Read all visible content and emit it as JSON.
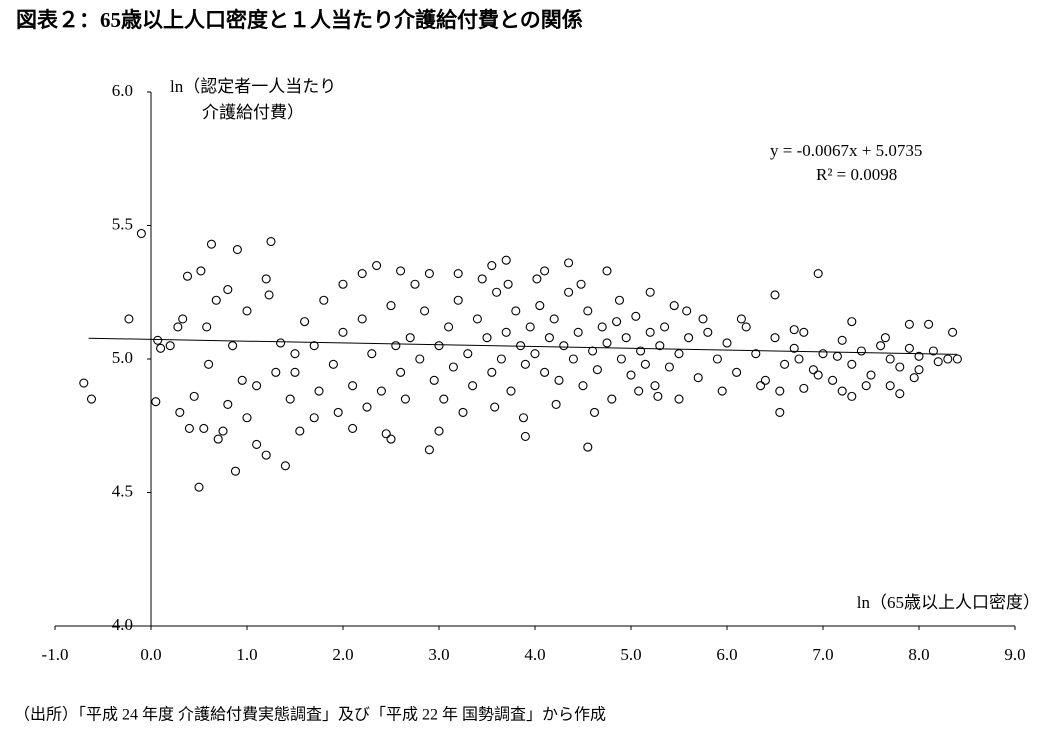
{
  "chart_data": {
    "type": "scatter",
    "title": "図表２：65歳以上人口密度と１人当たり介護給付費との関係",
    "x_label": "ln（65歳以上人口密度）",
    "y_label": [
      "ln（認定者一人当たり",
      "介護給付費）"
    ],
    "source": "（出所）「平成 24 年度 介護給付費実態調査」及び「平成 22 年 国勢調査」から作成",
    "equation": "y = -0.0067x + 5.0735",
    "r_squared": "R² = 0.0098",
    "trendline": {
      "slope": -0.0067,
      "intercept": 5.0735,
      "xlim": [
        -0.65,
        8.4
      ]
    },
    "color": "#000000",
    "xlim": [
      -1,
      9
    ],
    "ylim": [
      4,
      6
    ],
    "xticks": [
      {
        "value": -1,
        "label": "-1.0"
      },
      {
        "value": 0,
        "label": "0.0"
      },
      {
        "value": 1,
        "label": "1.0"
      },
      {
        "value": 2,
        "label": "2.0"
      },
      {
        "value": 3,
        "label": "3.0"
      },
      {
        "value": 4,
        "label": "4.0"
      },
      {
        "value": 5,
        "label": "5.0"
      },
      {
        "value": 6,
        "label": "6.0"
      },
      {
        "value": 7,
        "label": "7.0"
      },
      {
        "value": 8,
        "label": "8.0"
      },
      {
        "value": 9,
        "label": "9.0"
      }
    ],
    "yticks": [
      {
        "value": 4,
        "label": "4.0"
      },
      {
        "value": 4.5,
        "label": "4.5"
      },
      {
        "value": 5,
        "label": "5.0"
      },
      {
        "value": 5.5,
        "label": "5.5"
      },
      {
        "value": 6,
        "label": "6.0"
      }
    ],
    "x": [
      -0.7,
      -0.62,
      -0.1,
      -0.23,
      0.05,
      0.07,
      0.1,
      0.3,
      0.5,
      0.4,
      0.55,
      0.63,
      0.9,
      1.25,
      0.88,
      1.4,
      1.2,
      1.1,
      1.55,
      0.7,
      0.45,
      0.38,
      0.52,
      0.28,
      0.33,
      0.58,
      0.68,
      0.8,
      1.2,
      1.23,
      1.0,
      0.95,
      0.8,
      0.75,
      1.35,
      1.5,
      1.6,
      1.8,
      2.0,
      2.2,
      2.35,
      2.6,
      2.9,
      3.2,
      3.55,
      3.7,
      4.1,
      4.35,
      4.75,
      5.2,
      6.5,
      6.95,
      7.9,
      8.35,
      8.1,
      7.3,
      6.7,
      2.45,
      2.5,
      2.9,
      4.55,
      3.9,
      3.0,
      2.1,
      1.7,
      6.55,
      5.5,
      7.3,
      7.8,
      8.3,
      8.0,
      7.7,
      7.2,
      6.8,
      1.5,
      1.7,
      1.9,
      2.0,
      2.1,
      2.2,
      2.3,
      2.4,
      2.5,
      2.6,
      2.7,
      2.8,
      2.85,
      2.95,
      3.0,
      3.1,
      3.15,
      3.2,
      3.3,
      3.35,
      3.4,
      3.5,
      3.55,
      3.6,
      3.65,
      3.7,
      3.75,
      3.8,
      3.85,
      3.9,
      3.95,
      4.0,
      4.05,
      4.1,
      4.15,
      4.2,
      4.25,
      4.3,
      4.35,
      4.4,
      4.45,
      4.5,
      4.55,
      4.6,
      4.65,
      4.7,
      4.75,
      4.8,
      4.85,
      4.9,
      4.95,
      5.0,
      5.05,
      5.1,
      5.15,
      5.2,
      5.25,
      5.3,
      5.35,
      5.4,
      5.45,
      5.5,
      5.6,
      5.7,
      5.8,
      5.9,
      6.0,
      6.1,
      6.2,
      6.3,
      6.4,
      6.5,
      6.6,
      6.7,
      6.8,
      6.9,
      7.0,
      7.1,
      7.2,
      7.3,
      7.4,
      7.5,
      7.6,
      7.7,
      7.8,
      7.9,
      8.0,
      8.2,
      8.4,
      1.3,
      1.1,
      0.6,
      0.85,
      0.2,
      1.0,
      1.45,
      1.75,
      1.95,
      2.25,
      2.55,
      2.65,
      2.75,
      3.05,
      3.25,
      3.45,
      3.58,
      3.72,
      3.88,
      4.02,
      4.22,
      4.48,
      4.62,
      4.88,
      5.08,
      5.28,
      5.58,
      5.75,
      5.95,
      6.15,
      6.35,
      6.55,
      6.75,
      6.95,
      7.15,
      7.45,
      7.65,
      7.95,
      8.15
    ],
    "y": [
      4.91,
      4.85,
      5.47,
      5.15,
      4.84,
      5.07,
      5.04,
      4.8,
      4.52,
      4.74,
      4.74,
      5.43,
      5.41,
      5.44,
      4.58,
      4.6,
      4.64,
      4.68,
      4.73,
      4.7,
      4.86,
      5.31,
      5.33,
      5.12,
      5.15,
      5.12,
      5.22,
      5.26,
      5.3,
      5.24,
      4.78,
      4.92,
      4.83,
      4.73,
      5.06,
      5.02,
      5.14,
      5.22,
      5.28,
      5.32,
      5.35,
      5.33,
      5.32,
      5.32,
      5.35,
      5.37,
      5.33,
      5.36,
      5.33,
      5.25,
      5.24,
      5.32,
      5.13,
      5.1,
      5.13,
      5.14,
      5.11,
      4.72,
      4.7,
      4.66,
      4.67,
      4.71,
      4.73,
      4.74,
      4.78,
      4.8,
      4.85,
      4.86,
      4.87,
      5.0,
      4.96,
      4.9,
      4.88,
      4.89,
      4.95,
      5.05,
      4.98,
      5.1,
      4.9,
      5.15,
      5.02,
      4.88,
      5.2,
      4.95,
      5.08,
      5.0,
      5.18,
      4.92,
      5.05,
      5.12,
      4.97,
      5.22,
      5.02,
      4.9,
      5.15,
      5.08,
      4.95,
      5.25,
      5.0,
      5.1,
      4.88,
      5.18,
      5.05,
      4.98,
      5.12,
      5.02,
      5.2,
      4.95,
      5.08,
      5.15,
      4.92,
      5.05,
      5.25,
      5.0,
      5.1,
      4.9,
      5.18,
      5.03,
      4.96,
      5.12,
      5.06,
      4.85,
      5.14,
      5.0,
      5.08,
      4.94,
      5.16,
      5.03,
      4.98,
      5.1,
      4.9,
      5.05,
      5.12,
      4.97,
      5.2,
      5.02,
      5.08,
      4.93,
      5.1,
      5.0,
      5.06,
      4.95,
      5.12,
      5.02,
      4.92,
      5.08,
      4.98,
      5.04,
      5.1,
      4.96,
      5.02,
      4.92,
      5.07,
      4.98,
      5.03,
      4.94,
      5.05,
      5.0,
      4.97,
      5.04,
      5.01,
      4.99,
      5.0,
      4.95,
      4.9,
      4.98,
      5.05,
      5.05,
      5.18,
      4.85,
      4.88,
      4.8,
      4.82,
      5.05,
      4.85,
      5.28,
      4.85,
      4.8,
      5.3,
      4.82,
      5.28,
      4.78,
      5.3,
      4.83,
      5.28,
      4.8,
      5.22,
      4.88,
      4.86,
      5.18,
      5.15,
      4.88,
      5.15,
      4.9,
      4.88,
      5.0,
      4.94,
      5.01,
      4.9,
      5.08,
      4.93,
      5.03
    ]
  }
}
